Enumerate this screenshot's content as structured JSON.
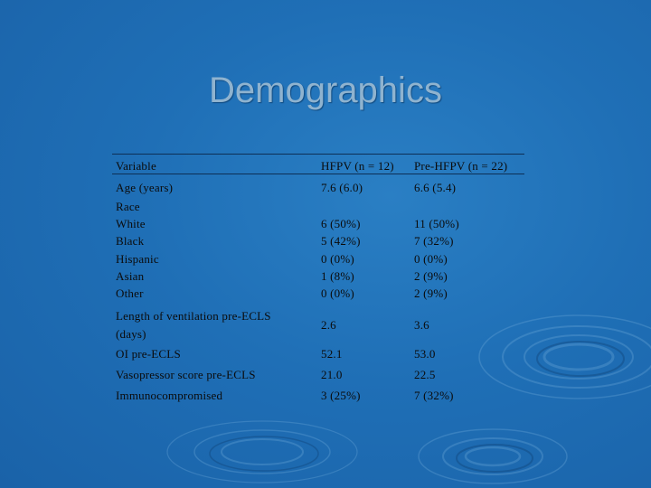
{
  "slide": {
    "title": "Demographics"
  },
  "table": {
    "headers": [
      "Variable",
      "HFPV (n = 12)",
      "Pre-HFPV (n = 22)"
    ],
    "rows": {
      "age": {
        "variable": "Age (years)",
        "hfpv": "7.6 (6.0)",
        "pre_hfpv": "6.6 (5.4)"
      },
      "race": {
        "variable": "Race",
        "white": {
          "label": "White",
          "hfpv": "6 (50%)",
          "pre_hfpv": "11 (50%)"
        },
        "black": {
          "label": "Black",
          "hfpv": "5 (42%)",
          "pre_hfpv": "7 (32%)"
        },
        "hispanic": {
          "label": "Hispanic",
          "hfpv": "0 (0%)",
          "pre_hfpv": "0 (0%)"
        },
        "asian": {
          "label": "Asian",
          "hfpv": "1 (8%)",
          "pre_hfpv": "2 (9%)"
        },
        "other": {
          "label": "Other",
          "hfpv": "0 (0%)",
          "pre_hfpv": "2 (9%)"
        }
      },
      "ventilation": {
        "variable_line1": "Length of ventilation pre-ECLS",
        "variable_line2": "(days)",
        "hfpv": "2.6",
        "pre_hfpv": "3.6"
      },
      "oi": {
        "variable": "OI pre-ECLS",
        "hfpv": "52.1",
        "pre_hfpv": "53.0"
      },
      "vasopressor": {
        "variable": "Vasopressor score pre-ECLS",
        "hfpv": "21.0",
        "pre_hfpv": "22.5"
      },
      "immuno": {
        "variable": "Immunocompromised",
        "hfpv": "3 (25%)",
        "pre_hfpv": "7 (32%)"
      }
    }
  },
  "colors": {
    "background": "#1f6fb6",
    "title": "#8fb3cf",
    "text": "#0b0b0b",
    "rule": "#0d2f55"
  }
}
